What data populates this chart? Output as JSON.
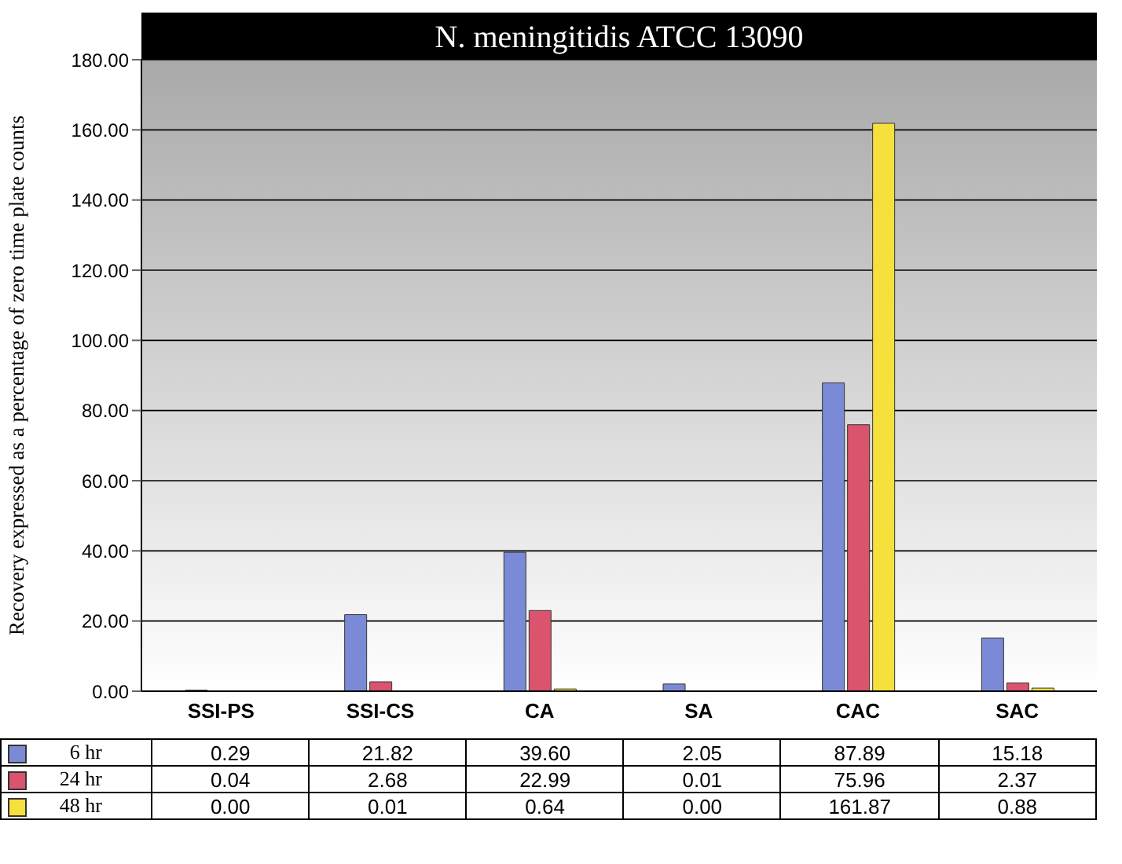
{
  "chart_data": {
    "type": "bar",
    "title": "N. meningitidis ATCC 13090",
    "ylabel": "Recovery expressed as a percentage of zero time plate counts",
    "categories": [
      "SSI-PS",
      "SSI-CS",
      "CA",
      "SA",
      "CAC",
      "SAC"
    ],
    "series": [
      {
        "name": "6 hr",
        "color": "#7b8ad6",
        "values": [
          0.29,
          21.82,
          39.6,
          2.05,
          87.89,
          15.18
        ],
        "value_labels": [
          "0.29",
          "21.82",
          "39.60",
          "2.05",
          "87.89",
          "15.18"
        ]
      },
      {
        "name": "24 hr",
        "color": "#d9546c",
        "values": [
          0.04,
          2.68,
          22.99,
          0.01,
          75.96,
          2.37
        ],
        "value_labels": [
          "0.04",
          "2.68",
          "22.99",
          "0.01",
          "75.96",
          "2.37"
        ]
      },
      {
        "name": "48 hr",
        "color": "#f6e03c",
        "values": [
          0,
          0.01,
          0.64,
          0,
          161.87,
          0.88
        ],
        "value_labels": [
          "0.00",
          "0.01",
          "0.64",
          "0.00",
          "161.87",
          "0.88"
        ]
      }
    ],
    "ylim": [
      0,
      180
    ],
    "yticks": [
      {
        "value": 0,
        "label": "0.00"
      },
      {
        "value": 20,
        "label": "20.00"
      },
      {
        "value": 40,
        "label": "40.00"
      },
      {
        "value": 60,
        "label": "60.00"
      },
      {
        "value": 80,
        "label": "80.00"
      },
      {
        "value": 100,
        "label": "100.00"
      },
      {
        "value": 120,
        "label": "120.00"
      },
      {
        "value": 140,
        "label": "140.00"
      },
      {
        "value": 160,
        "label": "160.00"
      },
      {
        "value": 180,
        "label": "180.00"
      }
    ],
    "grid": "y",
    "legend": "bottom"
  }
}
